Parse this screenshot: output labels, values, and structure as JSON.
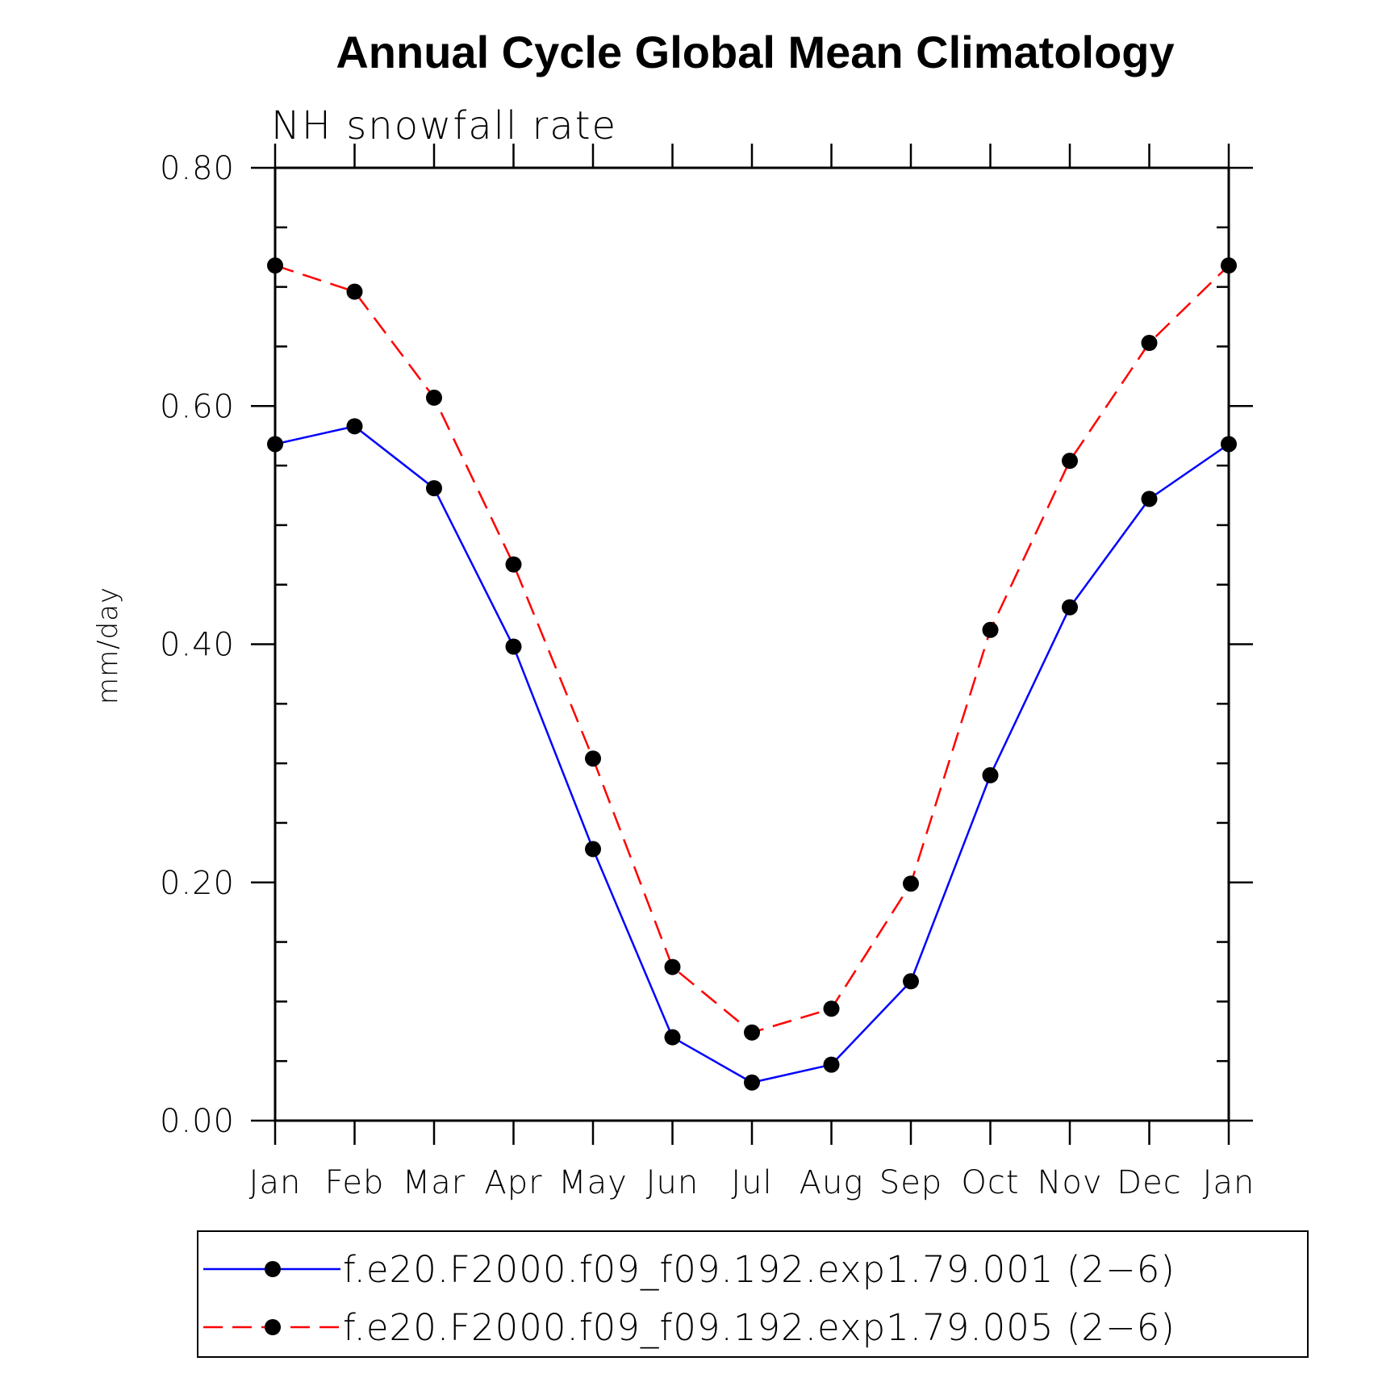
{
  "chart_data": {
    "type": "line",
    "title": "Annual Cycle Global Mean Climatology",
    "subtitle": "NH snowfall rate",
    "xlabel": "",
    "ylabel": "mm/day",
    "categories": [
      "Jan",
      "Feb",
      "Mar",
      "Apr",
      "May",
      "Jun",
      "Jul",
      "Aug",
      "Sep",
      "Oct",
      "Nov",
      "Dec",
      "Jan"
    ],
    "ylim": [
      0,
      0.8
    ],
    "yticks": [
      "0.00",
      "0.20",
      "0.40",
      "0.60",
      "0.80"
    ],
    "grid": false,
    "legend_position": "bottom",
    "series": [
      {
        "name": "f.e20.F2000.f09_f09.192.exp1.79.001 (2−6)",
        "color": "#0000ff",
        "dash": "solid",
        "marker": "filled-circle",
        "values": [
          0.568,
          0.583,
          0.531,
          0.398,
          0.228,
          0.07,
          0.032,
          0.047,
          0.117,
          0.29,
          0.431,
          0.522,
          0.568
        ]
      },
      {
        "name": "f.e20.F2000.f09_f09.192.exp1.79.005 (2−6)",
        "color": "#ff0000",
        "dash": "dashed",
        "marker": "filled-circle",
        "values": [
          0.718,
          0.696,
          0.607,
          0.467,
          0.304,
          0.129,
          0.074,
          0.094,
          0.199,
          0.412,
          0.554,
          0.653,
          0.718
        ]
      }
    ]
  }
}
